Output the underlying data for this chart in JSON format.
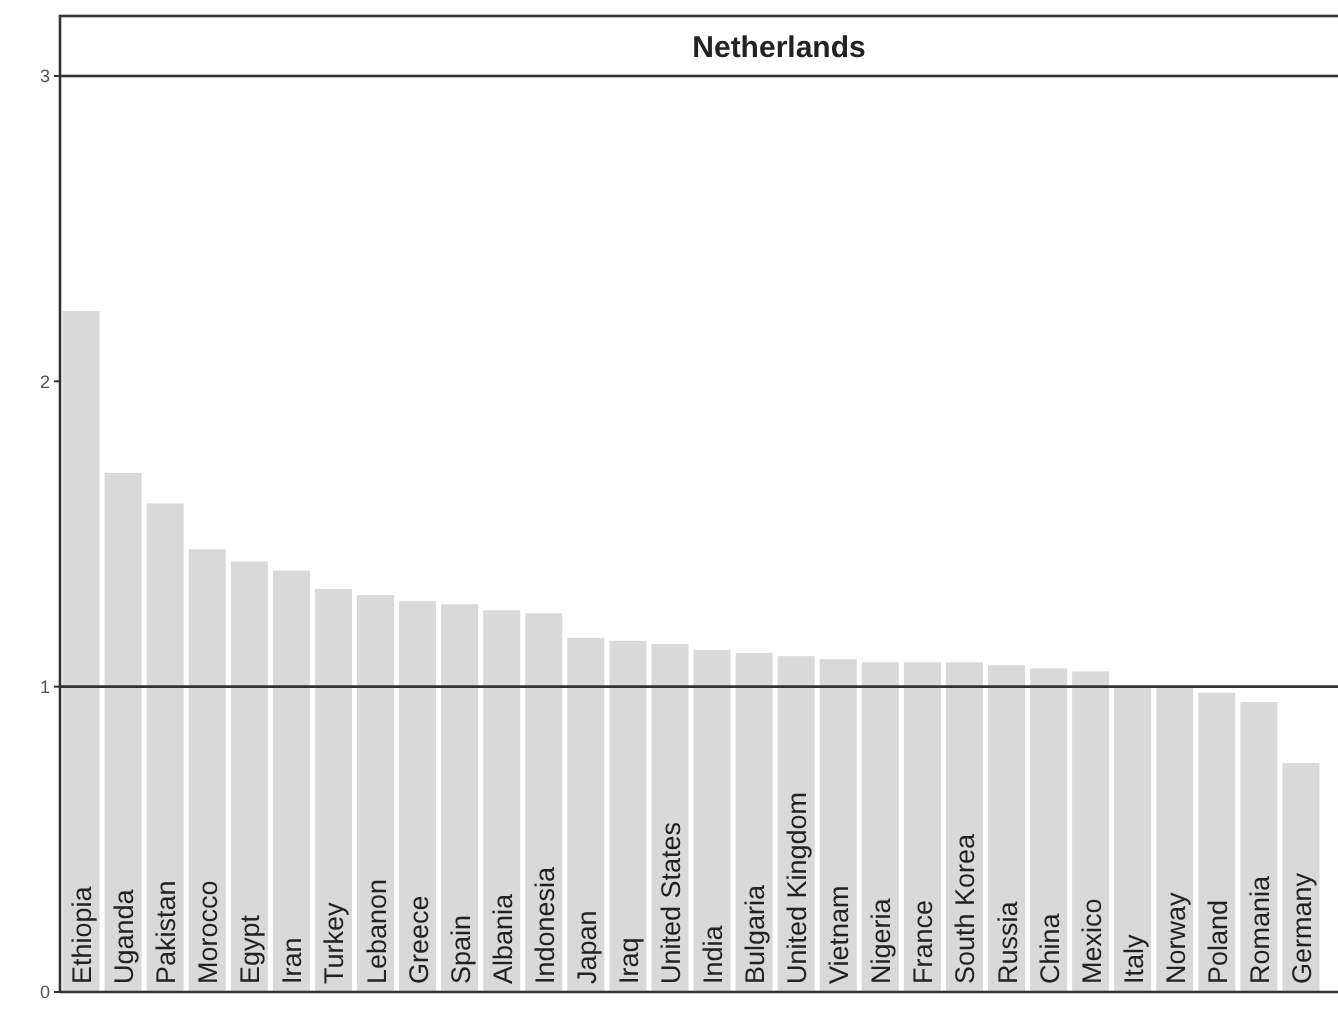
{
  "chart_data": {
    "type": "bar",
    "title": "Netherlands",
    "categories": [
      "Ethiopia",
      "Uganda",
      "Pakistan",
      "Morocco",
      "Egypt",
      "Iran",
      "Turkey",
      "Lebanon",
      "Greece",
      "Spain",
      "Albania",
      "Indonesia",
      "Japan",
      "Iraq",
      "United States",
      "India",
      "Bulgaria",
      "United Kingdom",
      "Vietnam",
      "Nigeria",
      "France",
      "South Korea",
      "Russia",
      "China",
      "Mexico",
      "Italy",
      "Norway",
      "Poland",
      "Romania",
      "Germany"
    ],
    "values": [
      2.23,
      1.7,
      1.6,
      1.45,
      1.41,
      1.38,
      1.32,
      1.3,
      1.28,
      1.27,
      1.25,
      1.24,
      1.16,
      1.15,
      1.14,
      1.12,
      1.11,
      1.1,
      1.09,
      1.08,
      1.08,
      1.08,
      1.07,
      1.06,
      1.05,
      1.0,
      1.0,
      0.98,
      0.95,
      0.75
    ],
    "color": "#d9d9d9",
    "ylim": [
      0,
      3
    ],
    "yticks": [
      0,
      1,
      2,
      3
    ],
    "ref_lines": [
      {
        "axis": "y",
        "value": 1,
        "color": "#333333"
      }
    ],
    "grid": false
  }
}
